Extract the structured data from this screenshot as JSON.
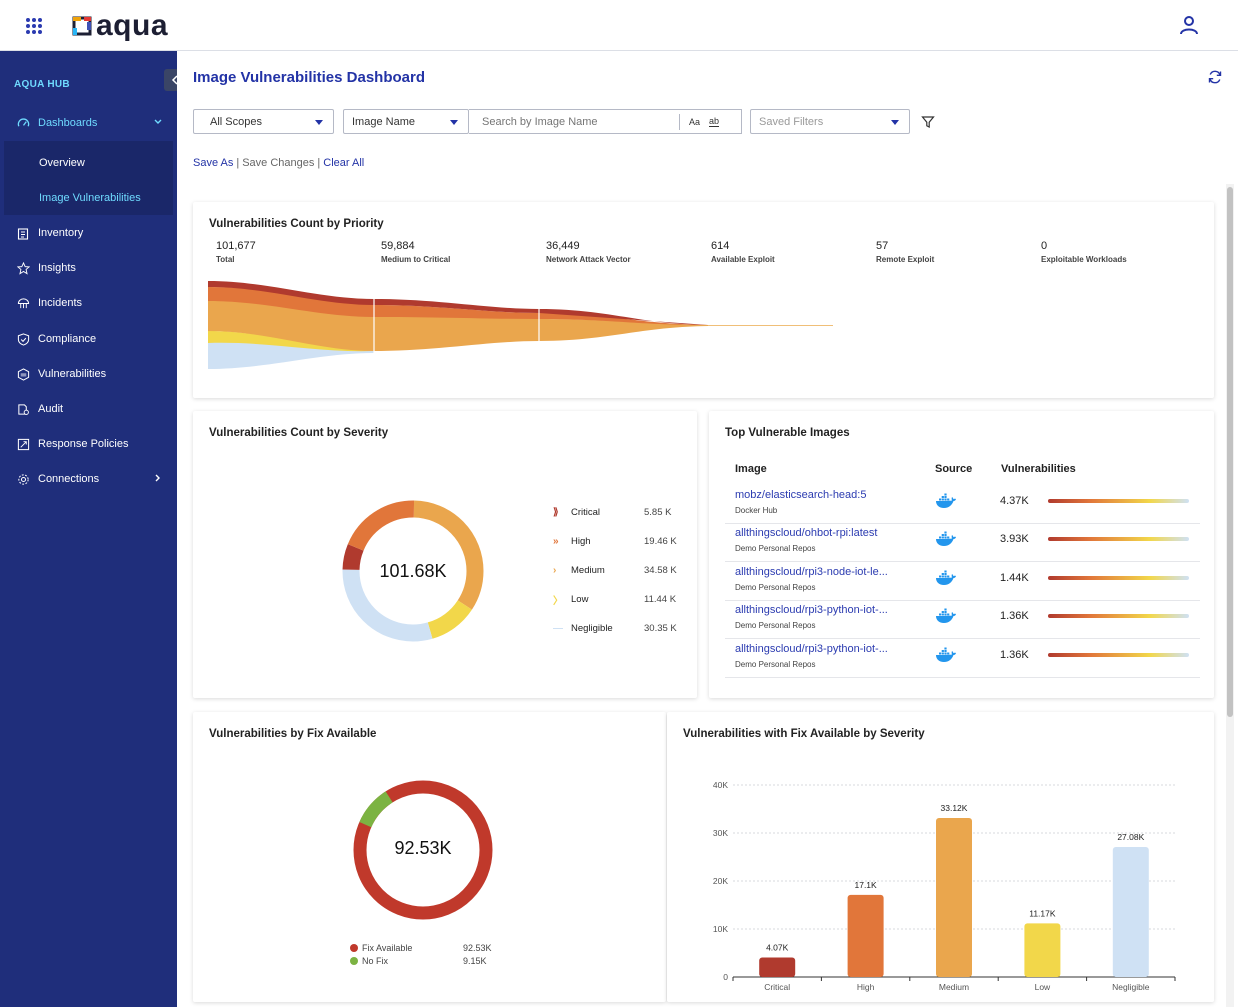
{
  "app": {
    "logo_text": "aqua"
  },
  "sidebar": {
    "hub_title": "AQUA HUB",
    "items": [
      {
        "label": "Dashboards",
        "icon": "dashboard-icon"
      },
      {
        "label": "Inventory",
        "icon": "clipboard-icon"
      },
      {
        "label": "Insights",
        "icon": "star-icon"
      },
      {
        "label": "Incidents",
        "icon": "jellyfish-icon"
      },
      {
        "label": "Compliance",
        "icon": "shield-check-icon"
      },
      {
        "label": "Vulnerabilities",
        "icon": "cve-icon"
      },
      {
        "label": "Audit",
        "icon": "audit-icon"
      },
      {
        "label": "Response Policies",
        "icon": "policy-icon"
      },
      {
        "label": "Connections",
        "icon": "gear-icon"
      }
    ],
    "sub_items": [
      {
        "label": "Overview"
      },
      {
        "label": "Image Vulnerabilities"
      }
    ]
  },
  "page": {
    "title": "Image Vulnerabilities Dashboard",
    "scope_select": "All Scopes",
    "field_select": "Image Name",
    "search_placeholder": "Search by Image Name",
    "case_toggle": "Aa",
    "word_toggle": "ab",
    "saved_filters": "Saved Filters",
    "save_as": "Save As",
    "save_changes": "Save Changes",
    "clear_all": "Clear All"
  },
  "priority": {
    "title": "Vulnerabilities Count by Priority",
    "stats": [
      {
        "value": "101,677",
        "label": "Total"
      },
      {
        "value": "59,884",
        "label": "Medium to Critical"
      },
      {
        "value": "36,449",
        "label": "Network Attack Vector"
      },
      {
        "value": "614",
        "label": "Available Exploit"
      },
      {
        "value": "57",
        "label": "Remote Exploit"
      },
      {
        "value": "0",
        "label": "Exploitable Workloads"
      }
    ]
  },
  "severity": {
    "title": "Vulnerabilities Count by Severity",
    "center_value": "101.68K",
    "legend": [
      {
        "label": "Critical",
        "value": "5.85 K",
        "marker": "⟫",
        "color": "#b03a2e"
      },
      {
        "label": "High",
        "value": "19.46 K",
        "marker": "»",
        "color": "#e1763a"
      },
      {
        "label": "Medium",
        "value": "34.58 K",
        "marker": "›",
        "color": "#eaa64d"
      },
      {
        "label": "Low",
        "value": "11.44 K",
        "marker": "〉",
        "color": "#f2d74a"
      },
      {
        "label": "Negligible",
        "value": "30.35 K",
        "marker": "—",
        "color": "#cfe1f4"
      }
    ]
  },
  "top_images": {
    "title": "Top Vulnerable Images",
    "headers": {
      "image": "Image",
      "source": "Source",
      "vulns": "Vulnerabilities"
    },
    "rows": [
      {
        "name": "mobz/elasticsearch-head:5",
        "source": "Docker Hub",
        "count": "4.37K"
      },
      {
        "name": "allthingscloud/ohbot-rpi:latest",
        "source": "Demo Personal Repos",
        "count": "3.93K"
      },
      {
        "name": "allthingscloud/rpi3-node-iot-le...",
        "source": "Demo Personal Repos",
        "count": "1.44K"
      },
      {
        "name": "allthingscloud/rpi3-python-iot-...",
        "source": "Demo Personal Repos",
        "count": "1.36K"
      },
      {
        "name": "allthingscloud/rpi3-python-iot-...",
        "source": "Demo Personal Repos",
        "count": "1.36K"
      }
    ]
  },
  "fix": {
    "title": "Vulnerabilities by Fix Available",
    "center_value": "92.53K",
    "legend": [
      {
        "label": "Fix Available",
        "value": "92.53K",
        "color": "#c0392b"
      },
      {
        "label": "No Fix",
        "value": "9.15K",
        "color": "#7cb342"
      }
    ]
  },
  "chart_data": {
    "type": "bar",
    "title": "Vulnerabilities with Fix Available by Severity",
    "categories": [
      "Critical",
      "High",
      "Medium",
      "Low",
      "Negligible"
    ],
    "values": [
      4070,
      17100,
      33120,
      11170,
      27080
    ],
    "value_labels": [
      "4.07K",
      "17.1K",
      "33.12K",
      "11.17K",
      "27.08K"
    ],
    "colors": [
      "#b03a2e",
      "#e1763a",
      "#eaa64d",
      "#f2d74a",
      "#cfe1f4"
    ],
    "yticks": [
      "0",
      "10K",
      "20K",
      "30K",
      "40K"
    ],
    "ylim": [
      0,
      40000
    ],
    "grid": true
  }
}
